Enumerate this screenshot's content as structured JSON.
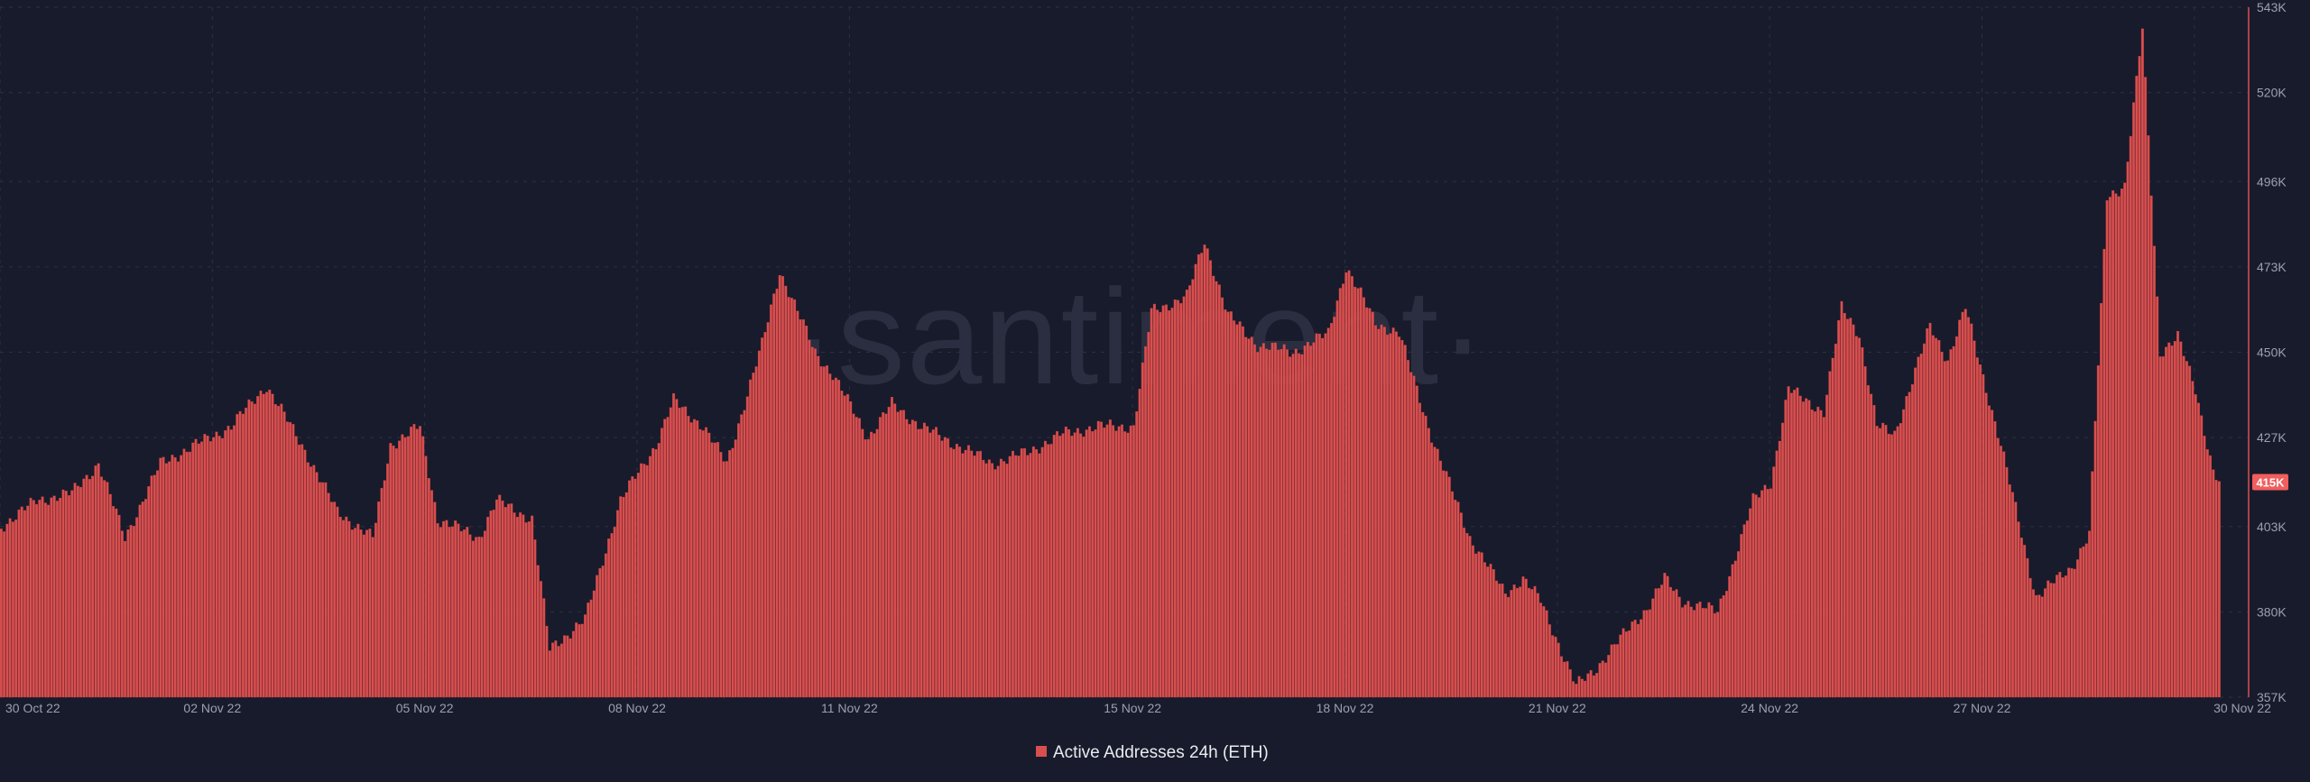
{
  "watermark": "·santiment·",
  "colors": {
    "background": "#181b2b",
    "bar": "#d94f4f",
    "bar_stroke": "#b03b3b",
    "grid": "#2c3042",
    "tick_label": "#9aa0b0",
    "badge": "#f25d5d"
  },
  "chart_data": {
    "type": "bar",
    "title": "",
    "xlabel": "",
    "ylabel": "",
    "series": [
      {
        "name": "Active Addresses 24h (ETH)",
        "color": "#d94f4f",
        "keypoints": [
          [
            "2022-10-30T00:00",
            403
          ],
          [
            "2022-10-30T12:00",
            410
          ],
          [
            "2022-10-31T00:00",
            412
          ],
          [
            "2022-10-31T09:00",
            420
          ],
          [
            "2022-10-31T18:00",
            400
          ],
          [
            "2022-11-01T06:00",
            420
          ],
          [
            "2022-11-01T18:00",
            425
          ],
          [
            "2022-11-02T06:00",
            430
          ],
          [
            "2022-11-02T18:00",
            441
          ],
          [
            "2022-11-03T06:00",
            425
          ],
          [
            "2022-11-03T18:00",
            407
          ],
          [
            "2022-11-04T06:00",
            400
          ],
          [
            "2022-11-04T12:00",
            425
          ],
          [
            "2022-11-04T22:00",
            430
          ],
          [
            "2022-11-05T04:00",
            405
          ],
          [
            "2022-11-05T18:00",
            400
          ],
          [
            "2022-11-06T00:00",
            410
          ],
          [
            "2022-11-06T12:00",
            405
          ],
          [
            "2022-11-06T18:00",
            370
          ],
          [
            "2022-11-07T06:00",
            378
          ],
          [
            "2022-11-07T18:00",
            410
          ],
          [
            "2022-11-08T06:00",
            425
          ],
          [
            "2022-11-08T12:00",
            437
          ],
          [
            "2022-11-08T22:00",
            430
          ],
          [
            "2022-11-09T06:00",
            420
          ],
          [
            "2022-11-09T18:00",
            452
          ],
          [
            "2022-11-10T00:00",
            472
          ],
          [
            "2022-11-10T12:00",
            450
          ],
          [
            "2022-11-10T18:00",
            444
          ],
          [
            "2022-11-11T06:00",
            427
          ],
          [
            "2022-11-11T14:00",
            436
          ],
          [
            "2022-11-12T00:00",
            430
          ],
          [
            "2022-11-12T12:00",
            425
          ],
          [
            "2022-11-13T00:00",
            420
          ],
          [
            "2022-11-13T12:00",
            423
          ],
          [
            "2022-11-14T00:00",
            428
          ],
          [
            "2022-11-14T12:00",
            430
          ],
          [
            "2022-11-15T00:00",
            430
          ],
          [
            "2022-11-15T06:00",
            461
          ],
          [
            "2022-11-15T18:00",
            465
          ],
          [
            "2022-11-16T00:00",
            480
          ],
          [
            "2022-11-16T08:00",
            460
          ],
          [
            "2022-11-16T18:00",
            452
          ],
          [
            "2022-11-17T06:00",
            450
          ],
          [
            "2022-11-17T18:00",
            455
          ],
          [
            "2022-11-18T00:00",
            473
          ],
          [
            "2022-11-18T10:00",
            458
          ],
          [
            "2022-11-18T18:00",
            455
          ],
          [
            "2022-11-19T06:00",
            425
          ],
          [
            "2022-11-19T18:00",
            400
          ],
          [
            "2022-11-20T06:00",
            385
          ],
          [
            "2022-11-20T12:00",
            389
          ],
          [
            "2022-11-20T18:00",
            383
          ],
          [
            "2022-11-21T06:00",
            360
          ],
          [
            "2022-11-21T12:00",
            364
          ],
          [
            "2022-11-21T18:00",
            370
          ],
          [
            "2022-11-22T06:00",
            381
          ],
          [
            "2022-11-22T12:00",
            389
          ],
          [
            "2022-11-22T18:00",
            383
          ],
          [
            "2022-11-23T06:00",
            380
          ],
          [
            "2022-11-23T18:00",
            410
          ],
          [
            "2022-11-24T00:00",
            415
          ],
          [
            "2022-11-24T06:00",
            440
          ],
          [
            "2022-11-24T18:00",
            434
          ],
          [
            "2022-11-25T00:00",
            462
          ],
          [
            "2022-11-25T06:00",
            455
          ],
          [
            "2022-11-25T12:00",
            430
          ],
          [
            "2022-11-25T18:00",
            428
          ],
          [
            "2022-11-26T06:00",
            457
          ],
          [
            "2022-11-26T12:00",
            448
          ],
          [
            "2022-11-26T18:00",
            462
          ],
          [
            "2022-11-27T06:00",
            425
          ],
          [
            "2022-11-27T18:00",
            384
          ],
          [
            "2022-11-28T06:00",
            392
          ],
          [
            "2022-11-28T12:00",
            401
          ],
          [
            "2022-11-28T18:00",
            492
          ],
          [
            "2022-11-29T00:00",
            495
          ],
          [
            "2022-11-29T06:00",
            537
          ],
          [
            "2022-11-29T12:00",
            450
          ],
          [
            "2022-11-29T18:00",
            454
          ],
          [
            "2022-11-30T00:00",
            440
          ],
          [
            "2022-11-30T06:00",
            418
          ],
          [
            "2022-11-30T08:00",
            415
          ]
        ]
      }
    ],
    "x_range": [
      "2022-10-30T00:00",
      "2022-11-30T08:00"
    ],
    "x_ticks": [
      "30 Oct 22",
      "02 Nov 22",
      "05 Nov 22",
      "08 Nov 22",
      "11 Nov 22",
      "15 Nov 22",
      "18 Nov 22",
      "21 Nov 22",
      "24 Nov 22",
      "27 Nov 22",
      "30 Nov 22"
    ],
    "x_tick_dates": [
      "2022-10-30",
      "2022-11-02",
      "2022-11-05",
      "2022-11-08",
      "2022-11-11",
      "2022-11-15",
      "2022-11-18",
      "2022-11-21",
      "2022-11-24",
      "2022-11-27",
      "2022-11-30"
    ],
    "y_unit": "K",
    "ylim": [
      357,
      543
    ],
    "y_ticks": [
      "543K",
      "520K",
      "496K",
      "473K",
      "450K",
      "427K",
      "403K",
      "380K",
      "357K"
    ],
    "y_tick_values": [
      543,
      520,
      496,
      473,
      450,
      427,
      403,
      380,
      357
    ],
    "current_value_label": "415K",
    "current_value": 415,
    "grid": true,
    "legend_position": "bottom-center"
  }
}
